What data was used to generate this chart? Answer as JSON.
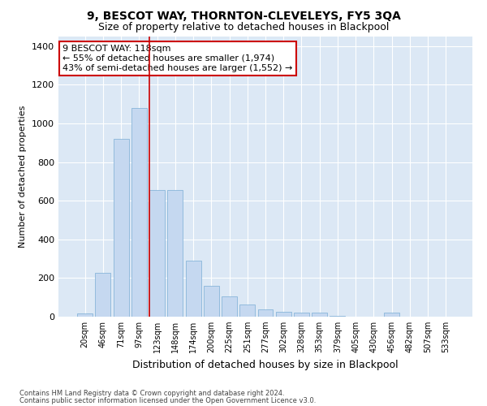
{
  "title": "9, BESCOT WAY, THORNTON-CLEVELEYS, FY5 3QA",
  "subtitle": "Size of property relative to detached houses in Blackpool",
  "xlabel": "Distribution of detached houses by size in Blackpool",
  "ylabel": "Number of detached properties",
  "bar_labels": [
    "20sqm",
    "46sqm",
    "71sqm",
    "97sqm",
    "123sqm",
    "148sqm",
    "174sqm",
    "200sqm",
    "225sqm",
    "251sqm",
    "277sqm",
    "302sqm",
    "328sqm",
    "353sqm",
    "379sqm",
    "405sqm",
    "430sqm",
    "456sqm",
    "482sqm",
    "507sqm",
    "533sqm"
  ],
  "bar_heights": [
    15,
    225,
    920,
    1080,
    655,
    655,
    290,
    160,
    105,
    65,
    38,
    25,
    20,
    20,
    5,
    0,
    0,
    20,
    0,
    0,
    0
  ],
  "bar_color": "#c5d8f0",
  "bar_edge_color": "#7aadd4",
  "highlight_bar_index": 4,
  "highlight_line_color": "#cc0000",
  "ylim": [
    0,
    1450
  ],
  "yticks": [
    0,
    200,
    400,
    600,
    800,
    1000,
    1200,
    1400
  ],
  "annotation_text": "9 BESCOT WAY: 118sqm\n← 55% of detached houses are smaller (1,974)\n43% of semi-detached houses are larger (1,552) →",
  "annotation_box_color": "#ffffff",
  "annotation_box_edge_color": "#cc0000",
  "bg_color": "#dce8f5",
  "grid_color": "#ffffff",
  "footer_line1": "Contains HM Land Registry data © Crown copyright and database right 2024.",
  "footer_line2": "Contains public sector information licensed under the Open Government Licence v3.0.",
  "title_fontsize": 10,
  "subtitle_fontsize": 9,
  "fig_bg_color": "#ffffff"
}
